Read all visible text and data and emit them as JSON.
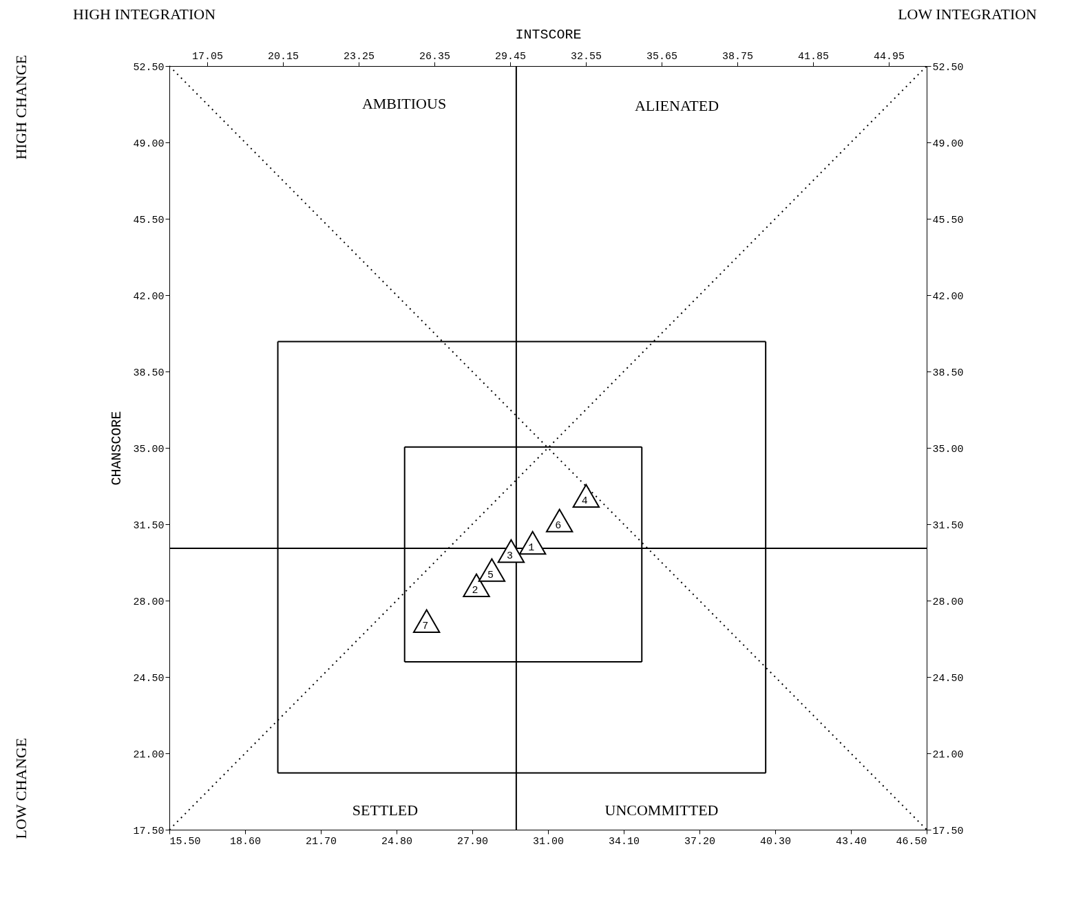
{
  "chart_data": {
    "type": "scatter",
    "x2label": "INTSCORE",
    "ylabel": "CHANSCORE",
    "annotations": [
      "HIGH INTEGRATION",
      "LOW INTEGRATION",
      "HIGH CHANGE",
      "LOW CHANGE",
      "AMBITIOUS",
      "ALIENATED",
      "SETTLED",
      "UNCOMMITTED"
    ],
    "xlim": [
      15.5,
      46.5
    ],
    "ylim": [
      17.5,
      52.5
    ],
    "x2lim": [
      15.5,
      46.5
    ],
    "y2lim": [
      17.5,
      52.5
    ],
    "xticks": [
      {
        "value": 15.5,
        "label": "15.50"
      },
      {
        "value": 18.6,
        "label": "18.60"
      },
      {
        "value": 21.7,
        "label": "21.70"
      },
      {
        "value": 24.8,
        "label": "24.80"
      },
      {
        "value": 27.9,
        "label": "27.90"
      },
      {
        "value": 31.0,
        "label": "31.00"
      },
      {
        "value": 34.1,
        "label": "34.10"
      },
      {
        "value": 37.2,
        "label": "37.20"
      },
      {
        "value": 40.3,
        "label": "40.30"
      },
      {
        "value": 43.4,
        "label": "43.40"
      },
      {
        "value": 46.5,
        "label": "46.50"
      }
    ],
    "x2ticks": [
      17.05,
      20.15,
      23.25,
      26.35,
      29.45,
      32.55,
      35.65,
      38.75,
      41.85,
      44.95
    ],
    "yticks": [
      {
        "value": 17.5,
        "label": "17.50"
      },
      {
        "value": 21.0,
        "label": "21.00"
      },
      {
        "value": 24.5,
        "label": "24.50"
      },
      {
        "value": 28.0,
        "label": "28.00"
      },
      {
        "value": 31.5,
        "label": "31.50"
      },
      {
        "value": 35.0,
        "label": "35.00"
      },
      {
        "value": 38.5,
        "label": "38.50"
      },
      {
        "value": 42.0,
        "label": "42.00"
      },
      {
        "value": 45.5,
        "label": "45.50"
      },
      {
        "value": 49.0,
        "label": "49.00"
      },
      {
        "value": 52.5,
        "label": "52.50"
      }
    ],
    "y2ticks": [
      {
        "value": 17.5,
        "label": "17.50"
      },
      {
        "value": 21.0,
        "label": "21.00"
      },
      {
        "value": 24.5,
        "label": "24.50"
      },
      {
        "value": 28.0,
        "label": "28.00"
      },
      {
        "value": 31.5,
        "label": "31.50"
      },
      {
        "value": 35.0,
        "label": "35.00"
      },
      {
        "value": 38.5,
        "label": "38.50"
      },
      {
        "value": 42.0,
        "label": "42.00"
      },
      {
        "value": 45.5,
        "label": "45.50"
      },
      {
        "value": 49.0,
        "label": "49.00"
      },
      {
        "value": 52.5,
        "label": "52.50"
      }
    ],
    "grid": false,
    "ref_lines": [
      {
        "axis": "x",
        "value": 29.7,
        "color": "#000000"
      },
      {
        "axis": "y",
        "value": 30.4,
        "color": "#000000"
      }
    ],
    "series": [
      {
        "type": "line",
        "color": "#000000",
        "line_style": "dotted",
        "x": [
          15.5,
          46.5
        ],
        "values": [
          17.5,
          52.5
        ]
      },
      {
        "type": "line",
        "color": "#000000",
        "line_style": "dotted",
        "x": [
          15.5,
          46.5
        ],
        "values": [
          52.5,
          17.5
        ]
      },
      {
        "type": "line",
        "color": "#000000",
        "line_style": "solid",
        "x": [
          19.94,
          39.91
        ],
        "values": [
          20.1,
          20.1
        ]
      },
      {
        "type": "line",
        "color": "#000000",
        "line_style": "solid",
        "x": [
          19.94,
          39.91
        ],
        "values": [
          39.87,
          39.87
        ]
      },
      {
        "type": "line",
        "color": "#000000",
        "line_style": "solid",
        "x": [
          19.94,
          19.94
        ],
        "values": [
          20.1,
          39.87
        ]
      },
      {
        "type": "line",
        "color": "#000000",
        "line_style": "solid",
        "x": [
          39.91,
          39.91
        ],
        "values": [
          20.1,
          39.87
        ]
      },
      {
        "type": "line",
        "color": "#000000",
        "line_style": "solid",
        "x": [
          25.13,
          34.84
        ],
        "values": [
          25.19,
          25.19
        ]
      },
      {
        "type": "line",
        "color": "#000000",
        "line_style": "solid",
        "x": [
          25.13,
          34.84
        ],
        "values": [
          35.04,
          35.04
        ]
      },
      {
        "type": "line",
        "color": "#000000",
        "line_style": "solid",
        "x": [
          25.13,
          25.13
        ],
        "values": [
          25.19,
          35.04
        ]
      },
      {
        "type": "line",
        "color": "#000000",
        "line_style": "solid",
        "x": [
          34.84,
          34.84
        ],
        "values": [
          25.19,
          35.04
        ]
      },
      {
        "name": "1",
        "color": "#000000",
        "marker": "triangle",
        "x": [
          30.37
        ],
        "values": [
          30.65
        ]
      },
      {
        "name": "2",
        "color": "#000000",
        "marker": "triangle",
        "x": [
          28.07
        ],
        "values": [
          28.7
        ]
      },
      {
        "name": "3",
        "color": "#000000",
        "marker": "triangle",
        "x": [
          29.49
        ],
        "values": [
          30.27
        ]
      },
      {
        "name": "4",
        "color": "#000000",
        "marker": "triangle",
        "x": [
          32.56
        ],
        "values": [
          32.8
        ]
      },
      {
        "name": "5",
        "color": "#000000",
        "marker": "triangle",
        "x": [
          28.7
        ],
        "values": [
          29.4
        ]
      },
      {
        "name": "6",
        "color": "#000000",
        "marker": "triangle",
        "x": [
          31.47
        ],
        "values": [
          31.67
        ]
      },
      {
        "name": "7",
        "color": "#000000",
        "marker": "triangle",
        "x": [
          26.03
        ],
        "values": [
          27.06
        ]
      }
    ]
  }
}
